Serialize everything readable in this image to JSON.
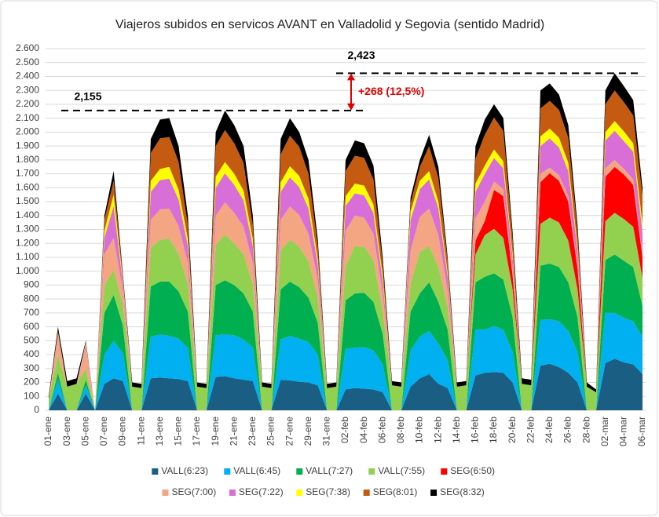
{
  "chart_data": {
    "type": "stacked_area",
    "title": "Viajeros subidos en servicos AVANT en Valladolid y Segovia (sentido Madrid)",
    "categories": [
      "01-ene",
      null,
      "03-ene",
      null,
      "05-ene",
      null,
      "07-ene",
      null,
      "09-ene",
      null,
      "11-ene",
      null,
      "13-ene",
      null,
      "15-ene",
      null,
      "17-ene",
      null,
      "19-ene",
      null,
      "21-ene",
      null,
      "23-ene",
      null,
      "25-ene",
      null,
      "27-ene",
      null,
      "29-ene",
      null,
      "31-ene",
      null,
      "02-feb",
      null,
      "04-feb",
      null,
      "06-feb",
      null,
      "08-feb",
      null,
      "10-feb",
      null,
      "12-feb",
      null,
      "14-feb",
      null,
      "16-feb",
      null,
      "18-feb",
      null,
      "20-feb",
      null,
      "22-feb",
      null,
      "24-feb",
      null,
      "26-feb",
      null,
      "28-feb",
      null,
      "02-mar",
      null,
      "04-mar",
      null,
      "06-mar"
    ],
    "series": [
      {
        "name": "VALL(6:23)",
        "color": "#1b5e84",
        "values": [
          0,
          120,
          0,
          0,
          120,
          0,
          190,
          230,
          210,
          0,
          0,
          230,
          235,
          230,
          225,
          210,
          0,
          0,
          240,
          245,
          230,
          220,
          210,
          0,
          0,
          220,
          215,
          205,
          200,
          180,
          0,
          0,
          150,
          160,
          155,
          150,
          130,
          0,
          0,
          170,
          230,
          260,
          190,
          160,
          0,
          0,
          250,
          270,
          275,
          270,
          200,
          0,
          0,
          320,
          335,
          310,
          270,
          200,
          0,
          0,
          340,
          370,
          345,
          330,
          260
        ]
      },
      {
        "name": "VALL(6:45)",
        "color": "#00b0f0",
        "values": [
          0,
          100,
          0,
          0,
          60,
          0,
          210,
          270,
          200,
          0,
          0,
          300,
          310,
          305,
          290,
          240,
          0,
          0,
          300,
          300,
          310,
          290,
          240,
          0,
          0,
          290,
          320,
          310,
          290,
          220,
          0,
          0,
          290,
          290,
          300,
          280,
          200,
          0,
          0,
          260,
          300,
          310,
          290,
          200,
          0,
          0,
          330,
          310,
          330,
          310,
          220,
          0,
          0,
          330,
          320,
          330,
          300,
          220,
          0,
          0,
          360,
          330,
          320,
          310,
          270
        ]
      },
      {
        "name": "VALL(7:27)",
        "color": "#00b050",
        "values": [
          0,
          50,
          0,
          0,
          40,
          0,
          300,
          330,
          200,
          0,
          0,
          360,
          380,
          390,
          340,
          260,
          0,
          0,
          360,
          390,
          360,
          330,
          260,
          0,
          0,
          360,
          390,
          370,
          320,
          230,
          0,
          0,
          350,
          390,
          390,
          350,
          220,
          0,
          0,
          280,
          310,
          350,
          300,
          220,
          0,
          0,
          340,
          380,
          380,
          360,
          250,
          0,
          0,
          390,
          400,
          390,
          350,
          250,
          0,
          0,
          380,
          420,
          410,
          390,
          220
        ]
      },
      {
        "name": "VALL(7:55)",
        "color": "#92d050",
        "values": [
          80,
          130,
          170,
          190,
          80,
          0,
          200,
          180,
          150,
          170,
          160,
          280,
          300,
          310,
          270,
          200,
          170,
          160,
          290,
          330,
          300,
          280,
          200,
          170,
          160,
          280,
          300,
          290,
          260,
          180,
          160,
          170,
          250,
          340,
          330,
          300,
          170,
          180,
          170,
          200,
          300,
          260,
          250,
          160,
          170,
          180,
          200,
          300,
          320,
          300,
          200,
          190,
          180,
          300,
          330,
          320,
          300,
          200,
          170,
          130,
          280,
          300,
          300,
          290,
          200
        ]
      },
      {
        "name": "SEG(6:50)",
        "color": "#ff0000",
        "values": [
          0,
          0,
          0,
          0,
          0,
          0,
          0,
          0,
          0,
          0,
          0,
          0,
          0,
          0,
          0,
          0,
          0,
          0,
          0,
          0,
          0,
          0,
          0,
          0,
          0,
          0,
          0,
          0,
          0,
          0,
          0,
          0,
          0,
          0,
          0,
          0,
          0,
          0,
          0,
          0,
          0,
          0,
          0,
          0,
          0,
          0,
          100,
          100,
          280,
          300,
          100,
          0,
          0,
          300,
          320,
          300,
          280,
          150,
          0,
          0,
          320,
          330,
          320,
          300,
          150
        ]
      },
      {
        "name": "SEG(7:00)",
        "color": "#f4a582",
        "values": [
          0,
          120,
          0,
          0,
          150,
          0,
          220,
          230,
          100,
          0,
          0,
          200,
          220,
          215,
          200,
          150,
          0,
          0,
          210,
          230,
          220,
          200,
          150,
          0,
          0,
          220,
          240,
          230,
          200,
          130,
          0,
          0,
          250,
          220,
          210,
          190,
          120,
          0,
          0,
          240,
          250,
          270,
          230,
          120,
          0,
          0,
          160,
          140,
          60,
          50,
          50,
          0,
          0,
          60,
          40,
          40,
          40,
          30,
          0,
          0,
          60,
          50,
          40,
          40,
          30
        ]
      },
      {
        "name": "SEG(7:22)",
        "color": "#d86fd8",
        "values": [
          0,
          20,
          0,
          0,
          20,
          0,
          120,
          230,
          50,
          0,
          0,
          200,
          210,
          215,
          190,
          120,
          0,
          0,
          200,
          210,
          200,
          190,
          120,
          0,
          0,
          200,
          210,
          200,
          180,
          110,
          0,
          0,
          180,
          160,
          160,
          150,
          90,
          0,
          0,
          220,
          200,
          210,
          190,
          100,
          0,
          0,
          190,
          200,
          170,
          150,
          80,
          0,
          0,
          200,
          210,
          200,
          180,
          100,
          0,
          0,
          200,
          210,
          200,
          200,
          150
        ]
      },
      {
        "name": "SEG(7:38)",
        "color": "#ffff00",
        "values": [
          0,
          10,
          0,
          0,
          10,
          0,
          50,
          80,
          20,
          0,
          0,
          80,
          80,
          85,
          70,
          50,
          0,
          0,
          80,
          80,
          80,
          70,
          50,
          0,
          0,
          70,
          80,
          80,
          70,
          40,
          0,
          0,
          70,
          70,
          70,
          60,
          40,
          0,
          0,
          60,
          60,
          60,
          50,
          30,
          0,
          0,
          60,
          60,
          60,
          50,
          30,
          0,
          0,
          70,
          70,
          70,
          60,
          30,
          0,
          0,
          60,
          70,
          70,
          60,
          60
        ]
      },
      {
        "name": "SEG(8:01)",
        "color": "#c55a11",
        "values": [
          0,
          20,
          0,
          0,
          10,
          0,
          80,
          100,
          30,
          0,
          0,
          200,
          220,
          215,
          200,
          100,
          0,
          0,
          220,
          230,
          220,
          200,
          100,
          0,
          0,
          200,
          220,
          210,
          180,
          90,
          0,
          0,
          180,
          200,
          200,
          180,
          80,
          0,
          0,
          60,
          100,
          180,
          170,
          80,
          0,
          0,
          180,
          220,
          230,
          220,
          100,
          0,
          0,
          200,
          200,
          200,
          180,
          100,
          0,
          0,
          200,
          220,
          210,
          200,
          200
        ]
      },
      {
        "name": "SEG(8:32)",
        "color": "#000000",
        "values": [
          20,
          30,
          40,
          40,
          10,
          0,
          30,
          70,
          20,
          30,
          30,
          100,
          135,
          135,
          115,
          70,
          30,
          30,
          100,
          140,
          130,
          120,
          70,
          30,
          30,
          110,
          125,
          105,
          100,
          50,
          30,
          30,
          80,
          110,
          105,
          100,
          50,
          30,
          30,
          40,
          50,
          80,
          80,
          30,
          30,
          30,
          90,
          110,
          95,
          90,
          50,
          40,
          40,
          130,
          125,
          110,
          90,
          50,
          30,
          20,
          100,
          123,
          115,
          110,
          60
        ]
      }
    ],
    "ylim": [
      0,
      2600
    ],
    "yticks": [
      0,
      100,
      200,
      300,
      400,
      500,
      600,
      700,
      800,
      900,
      {
        "value": 1000,
        "label": "1.000"
      },
      {
        "value": 1100,
        "label": "1.100"
      },
      {
        "value": 1200,
        "label": "1.200"
      },
      {
        "value": 1300,
        "label": "1.300"
      },
      {
        "value": 1400,
        "label": "1.400"
      },
      {
        "value": 1500,
        "label": "1.500"
      },
      {
        "value": 1600,
        "label": "1.600"
      },
      {
        "value": 1700,
        "label": "1.700"
      },
      {
        "value": 1800,
        "label": "1.800"
      },
      {
        "value": 1900,
        "label": "1.900"
      },
      {
        "value": 2000,
        "label": "2.000"
      },
      {
        "value": 2100,
        "label": "2.100"
      },
      {
        "value": 2200,
        "label": "2.200"
      },
      {
        "value": 2300,
        "label": "2.300"
      },
      {
        "value": 2400,
        "label": "2.400"
      },
      {
        "value": 2500,
        "label": "2.500"
      },
      {
        "value": 2600,
        "label": "2.600"
      }
    ],
    "grid": true,
    "legend": "bottom",
    "annotations": [
      {
        "value": 2155,
        "label": "2,155"
      },
      {
        "value": 2423,
        "label": "2,423"
      },
      {
        "value": 268,
        "label": "+268 (12,5%)"
      }
    ]
  }
}
